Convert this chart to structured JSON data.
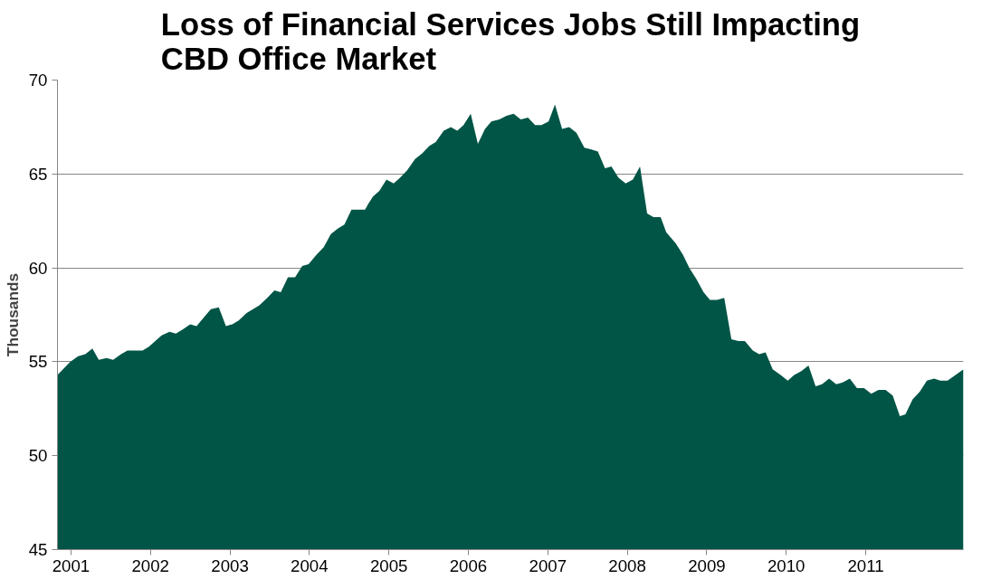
{
  "chart_data": {
    "type": "area",
    "title": "Loss of Financial Services Jobs Still Impacting\nCBD Office Market",
    "ylabel": "Thousands",
    "xlim": [
      2000.83,
      2012.23
    ],
    "xticks": [
      2001,
      2002,
      2003,
      2004,
      2005,
      2006,
      2007,
      2008,
      2009,
      2010,
      2011
    ],
    "ylim": [
      45,
      70
    ],
    "yticks": [
      45,
      50,
      55,
      60,
      65,
      70
    ],
    "grid": "y",
    "x": [
      2000.83,
      2000.99,
      2001.09,
      2001.18,
      2001.27,
      2001.35,
      2001.45,
      2001.53,
      2001.63,
      2001.71,
      2001.9,
      2001.98,
      2002.14,
      2002.24,
      2002.32,
      2002.4,
      2002.5,
      2002.58,
      2002.68,
      2002.76,
      2002.86,
      2002.95,
      2003.03,
      2003.11,
      2003.21,
      2003.29,
      2003.37,
      2003.47,
      2003.56,
      2003.64,
      2003.73,
      2003.82,
      2003.91,
      2003.99,
      2004.09,
      2004.18,
      2004.27,
      2004.36,
      2004.44,
      2004.53,
      2004.7,
      2004.74,
      2004.8,
      2004.88,
      2004.97,
      2005.06,
      2005.14,
      2005.23,
      2005.33,
      2005.42,
      2005.51,
      2005.59,
      2005.69,
      2005.78,
      2005.86,
      2005.94,
      2006.03,
      2006.12,
      2006.21,
      2006.29,
      2006.39,
      2006.48,
      2006.57,
      2006.66,
      2006.75,
      2006.84,
      2006.92,
      2007.01,
      2007.09,
      2007.18,
      2007.27,
      2007.36,
      2007.46,
      2007.55,
      2007.63,
      2007.72,
      2007.8,
      2007.89,
      2007.98,
      2008.07,
      2008.16,
      2008.25,
      2008.33,
      2008.42,
      2008.49,
      2008.61,
      2008.7,
      2008.78,
      2008.87,
      2008.96,
      2009.04,
      2009.13,
      2009.22,
      2009.31,
      2009.4,
      2009.48,
      2009.58,
      2009.66,
      2009.74,
      2009.83,
      2009.93,
      2010.02,
      2010.1,
      2010.19,
      2010.28,
      2010.37,
      2010.45,
      2010.54,
      2010.63,
      2010.71,
      2010.8,
      2010.89,
      2010.98,
      2011.07,
      2011.16,
      2011.25,
      2011.34,
      2011.43,
      2011.5,
      2011.59,
      2011.68,
      2011.77,
      2011.86,
      2011.94,
      2012.03,
      2012.23
    ],
    "series": [
      {
        "color": "#005546",
        "values": [
          54.3,
          55.0,
          55.3,
          55.4,
          55.7,
          55.1,
          55.2,
          55.1,
          55.4,
          55.6,
          55.6,
          55.8,
          56.4,
          56.6,
          56.5,
          56.7,
          57.0,
          56.9,
          57.4,
          57.8,
          57.9,
          56.9,
          57.0,
          57.2,
          57.6,
          57.8,
          58.0,
          58.4,
          58.8,
          58.7,
          59.5,
          59.5,
          60.1,
          60.2,
          60.7,
          61.1,
          61.8,
          62.1,
          62.3,
          63.1,
          63.1,
          63.4,
          63.8,
          64.1,
          64.7,
          64.5,
          64.8,
          65.2,
          65.8,
          66.1,
          66.5,
          66.7,
          67.3,
          67.5,
          67.3,
          67.6,
          68.2,
          66.6,
          67.4,
          67.8,
          67.9,
          68.1,
          68.2,
          67.9,
          68.0,
          67.6,
          67.6,
          67.8,
          68.7,
          67.4,
          67.5,
          67.2,
          66.4,
          66.3,
          66.2,
          65.3,
          65.4,
          64.8,
          64.5,
          64.7,
          65.4,
          62.9,
          62.7,
          62.7,
          61.9,
          61.3,
          60.7,
          60.0,
          59.4,
          58.7,
          58.3,
          58.3,
          58.4,
          56.2,
          56.1,
          56.1,
          55.6,
          55.4,
          55.5,
          54.6,
          54.3,
          54.0,
          54.3,
          54.5,
          54.8,
          53.7,
          53.8,
          54.1,
          53.8,
          53.9,
          54.1,
          53.6,
          53.6,
          53.3,
          53.5,
          53.5,
          53.2,
          52.1,
          52.2,
          53.0,
          53.4,
          54.0,
          54.1,
          54.0,
          54.0,
          54.6
        ]
      }
    ]
  }
}
